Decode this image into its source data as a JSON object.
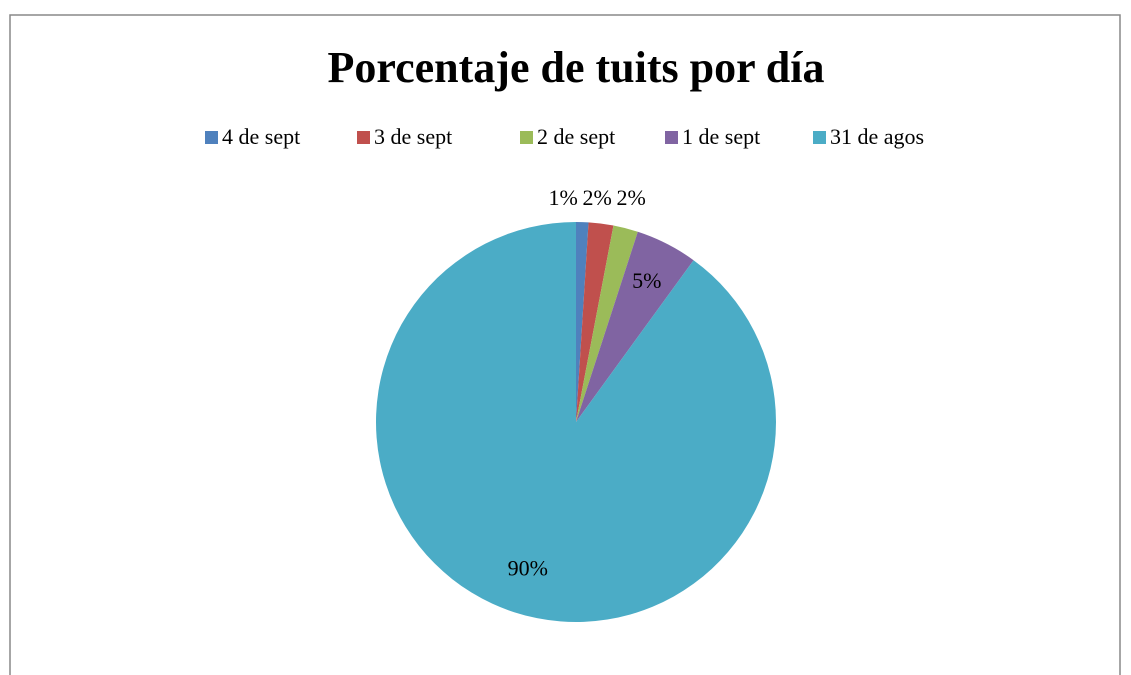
{
  "chart_data": {
    "type": "pie",
    "title": "Porcentaje de tuits por día",
    "categories": [
      "4 de sept",
      "3 de sept",
      "2 de sept",
      "1 de sept",
      "31 de agos"
    ],
    "values": [
      1,
      2,
      2,
      5,
      90
    ],
    "value_labels": [
      "1%",
      "2%",
      "2%",
      "5%",
      "90%"
    ],
    "colors": [
      "#4f81bd",
      "#c0504d",
      "#9bbb59",
      "#8064a2",
      "#4bacc6"
    ],
    "legend": "top"
  }
}
